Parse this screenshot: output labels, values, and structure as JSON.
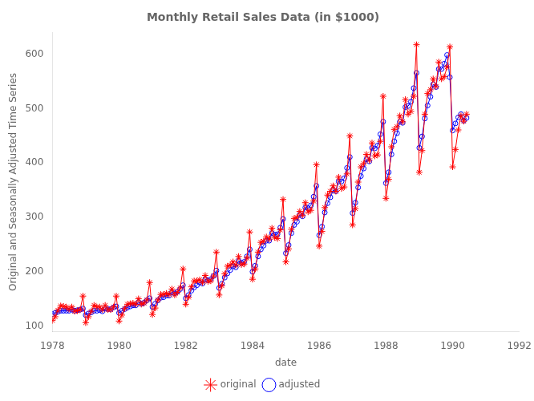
{
  "chart_data": {
    "type": "line",
    "title": "Monthly Retail Sales Data (in $1000)",
    "xlabel": "date",
    "ylabel": "Original and Seasonally Adjusted Time Series",
    "xlim": [
      1978,
      1992
    ],
    "ylim": [
      90,
      640
    ],
    "xticks": [
      1978,
      1980,
      1982,
      1984,
      1986,
      1988,
      1990,
      1992
    ],
    "yticks": [
      100,
      200,
      300,
      400,
      500,
      600
    ],
    "grid": false,
    "legend": "bottom",
    "x": [
      1978,
      1978.0833333333,
      1978.1666666667,
      1978.25,
      1978.3333333333,
      1978.4166666667,
      1978.5,
      1978.5833333333,
      1978.6666666667,
      1978.75,
      1978.8333333333,
      1978.9166666667,
      1979,
      1979.0833333333,
      1979.1666666667,
      1979.25,
      1979.3333333333,
      1979.4166666667,
      1979.5,
      1979.5833333333,
      1979.6666666667,
      1979.75,
      1979.8333333333,
      1979.9166666667,
      1980,
      1980.0833333333,
      1980.1666666667,
      1980.25,
      1980.3333333333,
      1980.4166666667,
      1980.5,
      1980.5833333333,
      1980.6666666667,
      1980.75,
      1980.8333333333,
      1980.9166666667,
      1981,
      1981.0833333333,
      1981.1666666667,
      1981.25,
      1981.3333333333,
      1981.4166666667,
      1981.5,
      1981.5833333333,
      1981.6666666667,
      1981.75,
      1981.8333333333,
      1981.9166666667,
      1982,
      1982.0833333333,
      1982.1666666667,
      1982.25,
      1982.3333333333,
      1982.4166666667,
      1982.5,
      1982.5833333333,
      1982.6666666667,
      1982.75,
      1982.8333333333,
      1982.9166666667,
      1983,
      1983.0833333333,
      1983.1666666667,
      1983.25,
      1983.3333333333,
      1983.4166666667,
      1983.5,
      1983.5833333333,
      1983.6666666667,
      1983.75,
      1983.8333333333,
      1983.9166666667,
      1984,
      1984.0833333333,
      1984.1666666667,
      1984.25,
      1984.3333333333,
      1984.4166666667,
      1984.5,
      1984.5833333333,
      1984.6666666667,
      1984.75,
      1984.8333333333,
      1984.9166666667,
      1985,
      1985.0833333333,
      1985.1666666667,
      1985.25,
      1985.3333333333,
      1985.4166666667,
      1985.5,
      1985.5833333333,
      1985.6666666667,
      1985.75,
      1985.8333333333,
      1985.9166666667,
      1986,
      1986.0833333333,
      1986.1666666667,
      1986.25,
      1986.3333333333,
      1986.4166666667,
      1986.5,
      1986.5833333333,
      1986.6666666667,
      1986.75,
      1986.8333333333,
      1986.9166666667,
      1987,
      1987.0833333333,
      1987.1666666667,
      1987.25,
      1987.3333333333,
      1987.4166666667,
      1987.5,
      1987.5833333333,
      1987.6666666667,
      1987.75,
      1987.8333333333,
      1987.9166666667,
      1988,
      1988.0833333333,
      1988.1666666667,
      1988.25,
      1988.3333333333,
      1988.4166666667,
      1988.5,
      1988.5833333333,
      1988.6666666667,
      1988.75,
      1988.8333333333,
      1988.9166666667,
      1989,
      1989.0833333333,
      1989.1666666667,
      1989.25,
      1989.3333333333,
      1989.4166666667,
      1989.5,
      1989.5833333333,
      1989.6666666667,
      1989.75,
      1989.8333333333,
      1989.9166666667,
      1990,
      1990.0833333333,
      1990.1666666667,
      1990.25,
      1990.3333333333,
      1990.4166666667
    ],
    "series": [
      {
        "name": "original",
        "color": "#FF0000",
        "marker": "star",
        "values": [
          110,
          117,
          129,
          137,
          136,
          135,
          131,
          135,
          127,
          128,
          130,
          155,
          106,
          117,
          127,
          138,
          135,
          135,
          130,
          138,
          130,
          130,
          135,
          155,
          109,
          120,
          132,
          140,
          141,
          142,
          140,
          150,
          140,
          142,
          148,
          180,
          121,
          133,
          148,
          158,
          158,
          160,
          158,
          168,
          157,
          162,
          170,
          205,
          140,
          153,
          172,
          183,
          183,
          185,
          180,
          193,
          182,
          183,
          192,
          236,
          157,
          174,
          196,
          210,
          212,
          218,
          212,
          228,
          213,
          214,
          225,
          273,
          186,
          205,
          236,
          254,
          256,
          264,
          260,
          280,
          263,
          261,
          277,
          333,
          218,
          242,
          278,
          298,
          300,
          311,
          304,
          327,
          310,
          313,
          330,
          397,
          247,
          274,
          318,
          341,
          348,
          358,
          348,
          374,
          353,
          356,
          380,
          450,
          286,
          316,
          365,
          393,
          399,
          416,
          405,
          437,
          413,
          415,
          440,
          523,
          335,
          370,
          430,
          462,
          467,
          487,
          476,
          517,
          490,
          495,
          523,
          618,
          383,
          423,
          490,
          528,
          535,
          555,
          541,
          586,
          555,
          559,
          577,
          614,
          393,
          425,
          461,
          487,
          477,
          490
        ]
      },
      {
        "name": "adjusted",
        "color": "#0000FF",
        "marker": "circle",
        "values": [
          122,
          124,
          126,
          128,
          128,
          128,
          128,
          130,
          128,
          129,
          130,
          132,
          120,
          123,
          125,
          128,
          128,
          129,
          127,
          132,
          131,
          131,
          134,
          136,
          124,
          128,
          131,
          134,
          136,
          138,
          138,
          144,
          141,
          143,
          147,
          151,
          135,
          141,
          147,
          152,
          153,
          156,
          156,
          162,
          160,
          163,
          168,
          175,
          151,
          157,
          165,
          171,
          175,
          180,
          178,
          186,
          184,
          186,
          192,
          202,
          170,
          178,
          189,
          197,
          203,
          210,
          208,
          220,
          216,
          218,
          228,
          241,
          200,
          211,
          228,
          241,
          248,
          257,
          257,
          271,
          268,
          269,
          281,
          297,
          234,
          249,
          271,
          286,
          292,
          305,
          302,
          318,
          317,
          322,
          338,
          358,
          267,
          283,
          309,
          326,
          337,
          350,
          348,
          366,
          366,
          372,
          391,
          411,
          308,
          327,
          355,
          376,
          390,
          407,
          403,
          428,
          427,
          432,
          453,
          476,
          363,
          383,
          416,
          440,
          455,
          476,
          474,
          503,
          505,
          513,
          538,
          566,
          428,
          449,
          482,
          506,
          522,
          545,
          540,
          573,
          573,
          583,
          599,
          558,
          460,
          473,
          484,
          490,
          478,
          483
        ]
      }
    ]
  }
}
